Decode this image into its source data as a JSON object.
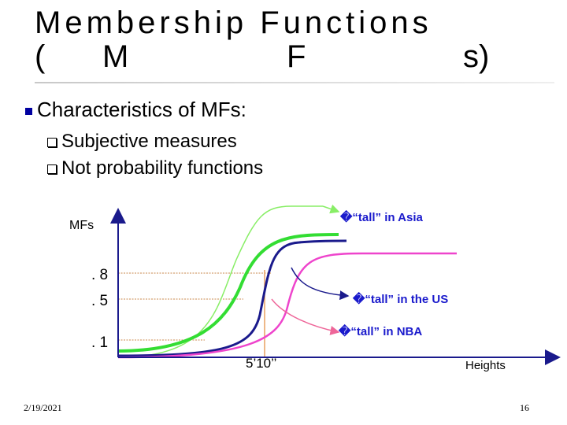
{
  "slide": {
    "title_line1": "Membership Functions",
    "title_line2": [
      "(",
      "M",
      "F",
      "s)"
    ],
    "bullet_main": "Characteristics of MFs:",
    "sub_bullets": [
      "Subjective measures",
      "Not probability functions"
    ],
    "footer_date": "2/19/2021",
    "footer_page": "16"
  },
  "diagram": {
    "y_axis_label": "MFs",
    "x_axis_label": "Heights",
    "x_marker_label": "5’10’’",
    "y_ticks": [
      ". 8",
      ". 5",
      ". 1"
    ],
    "curve_labels": {
      "asia": "�“tall” in Asia",
      "us": "�“tall” in the US",
      "nba": "�“tall” in NBA"
    },
    "colors": {
      "asia": "#33dd33",
      "us": "#1a1a8c",
      "nba": "#ee44cc",
      "callout_asia": "#88ee66",
      "callout_us": "#1a1a8c",
      "callout_nba": "#ee6699",
      "label_text": "#1a1acc",
      "axis": "#1a1a8c",
      "guides": "#d4a070",
      "marker": "#e8a060"
    }
  }
}
